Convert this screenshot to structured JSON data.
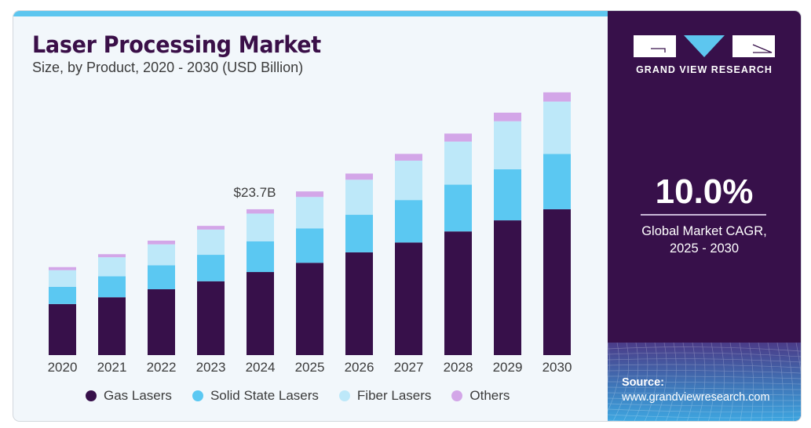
{
  "header": {
    "title": "Laser Processing Market",
    "subtitle": "Size, by Product, 2020 - 2030 (USD Billion)"
  },
  "sidebar": {
    "brand": "GRAND VIEW RESEARCH",
    "cagr_value": "10.0%",
    "cagr_label_line1": "Global Market CAGR,",
    "cagr_label_line2": "2025 - 2030",
    "source_label": "Source:",
    "source_url": "www.grandviewresearch.com"
  },
  "colors": {
    "gas": "#37104a",
    "solid": "#5bc8f2",
    "fiber": "#bde8f9",
    "others": "#d3a6e8",
    "accent": "#5dc6ef",
    "sidebar_bg": "#37104a"
  },
  "chart_data": {
    "type": "bar",
    "stacked": true,
    "title": "Laser Processing Market",
    "subtitle": "Size, by Product, 2020 - 2030 (USD Billion)",
    "xlabel": "",
    "ylabel": "USD Billion",
    "categories": [
      "2020",
      "2021",
      "2022",
      "2023",
      "2024",
      "2025",
      "2026",
      "2027",
      "2028",
      "2029",
      "2030"
    ],
    "series": [
      {
        "name": "Gas Lasers",
        "key": "gas",
        "values": [
          8.3,
          9.4,
          10.7,
          12.0,
          13.5,
          15.0,
          16.7,
          18.3,
          20.1,
          21.9,
          23.7
        ]
      },
      {
        "name": "Solid State Lasers",
        "key": "solid",
        "values": [
          2.8,
          3.4,
          3.9,
          4.3,
          5.0,
          5.6,
          6.1,
          6.9,
          7.6,
          8.3,
          9.0
        ]
      },
      {
        "name": "Fiber Lasers",
        "key": "fiber",
        "values": [
          2.7,
          3.1,
          3.4,
          4.1,
          4.5,
          5.1,
          5.7,
          6.4,
          7.0,
          7.8,
          8.5
        ]
      },
      {
        "name": "Others",
        "key": "others",
        "values": [
          0.5,
          0.5,
          0.6,
          0.6,
          0.7,
          0.9,
          1.0,
          1.1,
          1.3,
          1.4,
          1.5
        ]
      }
    ],
    "annotations": [
      {
        "category": "2024",
        "text": "$23.7B"
      }
    ],
    "ylim": [
      0,
      45
    ],
    "grid": false,
    "y_axis_visible": false,
    "legend": "bottom"
  }
}
